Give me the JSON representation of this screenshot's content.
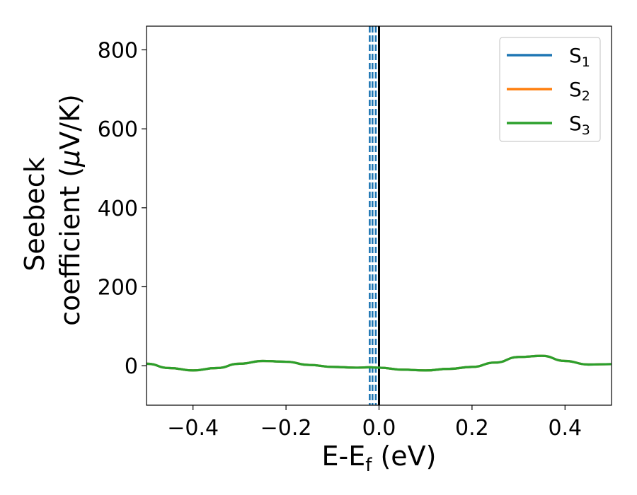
{
  "chart_data": {
    "type": "line",
    "xlabel": "E-E",
    "xlabel_sub": "f",
    "xlabel_unit": " (eV)",
    "ylabel_line1": "Seebeck",
    "ylabel_line2": "coefficient  (",
    "ylabel_mu": "μ",
    "ylabel_unit": "V/K)",
    "xlim": [
      -0.5,
      0.5
    ],
    "ylim": [
      -100,
      860
    ],
    "xticks": [
      -0.4,
      -0.2,
      0.0,
      0.2,
      0.4
    ],
    "xtick_labels": [
      "−0.4",
      "−0.2",
      "0.0",
      "0.2",
      "0.4"
    ],
    "yticks": [
      0,
      200,
      400,
      600,
      800
    ],
    "ytick_labels": [
      "0",
      "200",
      "400",
      "600",
      "800"
    ],
    "legend_position": "upper right",
    "grid": false,
    "series": [
      {
        "name": "S",
        "sub": "1",
        "color": "#1f77b4",
        "x": [
          -0.5,
          -0.45,
          -0.4,
          -0.35,
          -0.3,
          -0.25,
          -0.2,
          -0.15,
          -0.1,
          -0.05,
          -0.02,
          0.0,
          0.05,
          0.1,
          0.15,
          0.2,
          0.25,
          0.3,
          0.35,
          0.4,
          0.45,
          0.5
        ],
        "y": [
          5,
          -6,
          -12,
          -6,
          5,
          12,
          10,
          2,
          -3,
          -5,
          -4,
          -5,
          -10,
          -12,
          -8,
          -3,
          8,
          22,
          25,
          12,
          3,
          4
        ]
      },
      {
        "name": "S",
        "sub": "2",
        "color": "#ff7f0e",
        "x": [
          -0.5,
          -0.45,
          -0.4,
          -0.35,
          -0.3,
          -0.25,
          -0.2,
          -0.15,
          -0.1,
          -0.05,
          -0.02,
          0.0,
          0.05,
          0.1,
          0.15,
          0.2,
          0.25,
          0.3,
          0.35,
          0.4,
          0.45,
          0.5
        ],
        "y": [
          5,
          -6,
          -12,
          -6,
          5,
          12,
          10,
          2,
          -3,
          -5,
          -4,
          -5,
          -10,
          -12,
          -8,
          -3,
          8,
          22,
          25,
          12,
          3,
          4
        ]
      },
      {
        "name": "S",
        "sub": "3",
        "color": "#2ca02c",
        "x": [
          -0.5,
          -0.45,
          -0.4,
          -0.35,
          -0.3,
          -0.25,
          -0.2,
          -0.15,
          -0.1,
          -0.05,
          -0.02,
          0.0,
          0.05,
          0.1,
          0.15,
          0.2,
          0.25,
          0.3,
          0.35,
          0.4,
          0.45,
          0.5
        ],
        "y": [
          5,
          -6,
          -12,
          -6,
          5,
          12,
          10,
          2,
          -3,
          -5,
          -4,
          -5,
          -10,
          -12,
          -8,
          -3,
          8,
          22,
          25,
          12,
          3,
          4
        ]
      }
    ],
    "vlines": [
      {
        "x": -0.02,
        "style": "dashed",
        "color": "#1f77b4"
      },
      {
        "x": -0.014,
        "style": "dashed",
        "color": "#1f77b4"
      },
      {
        "x": -0.007,
        "style": "dashed",
        "color": "#1f77b4"
      },
      {
        "x": 0.0,
        "style": "solid",
        "color": "#000000"
      }
    ]
  }
}
